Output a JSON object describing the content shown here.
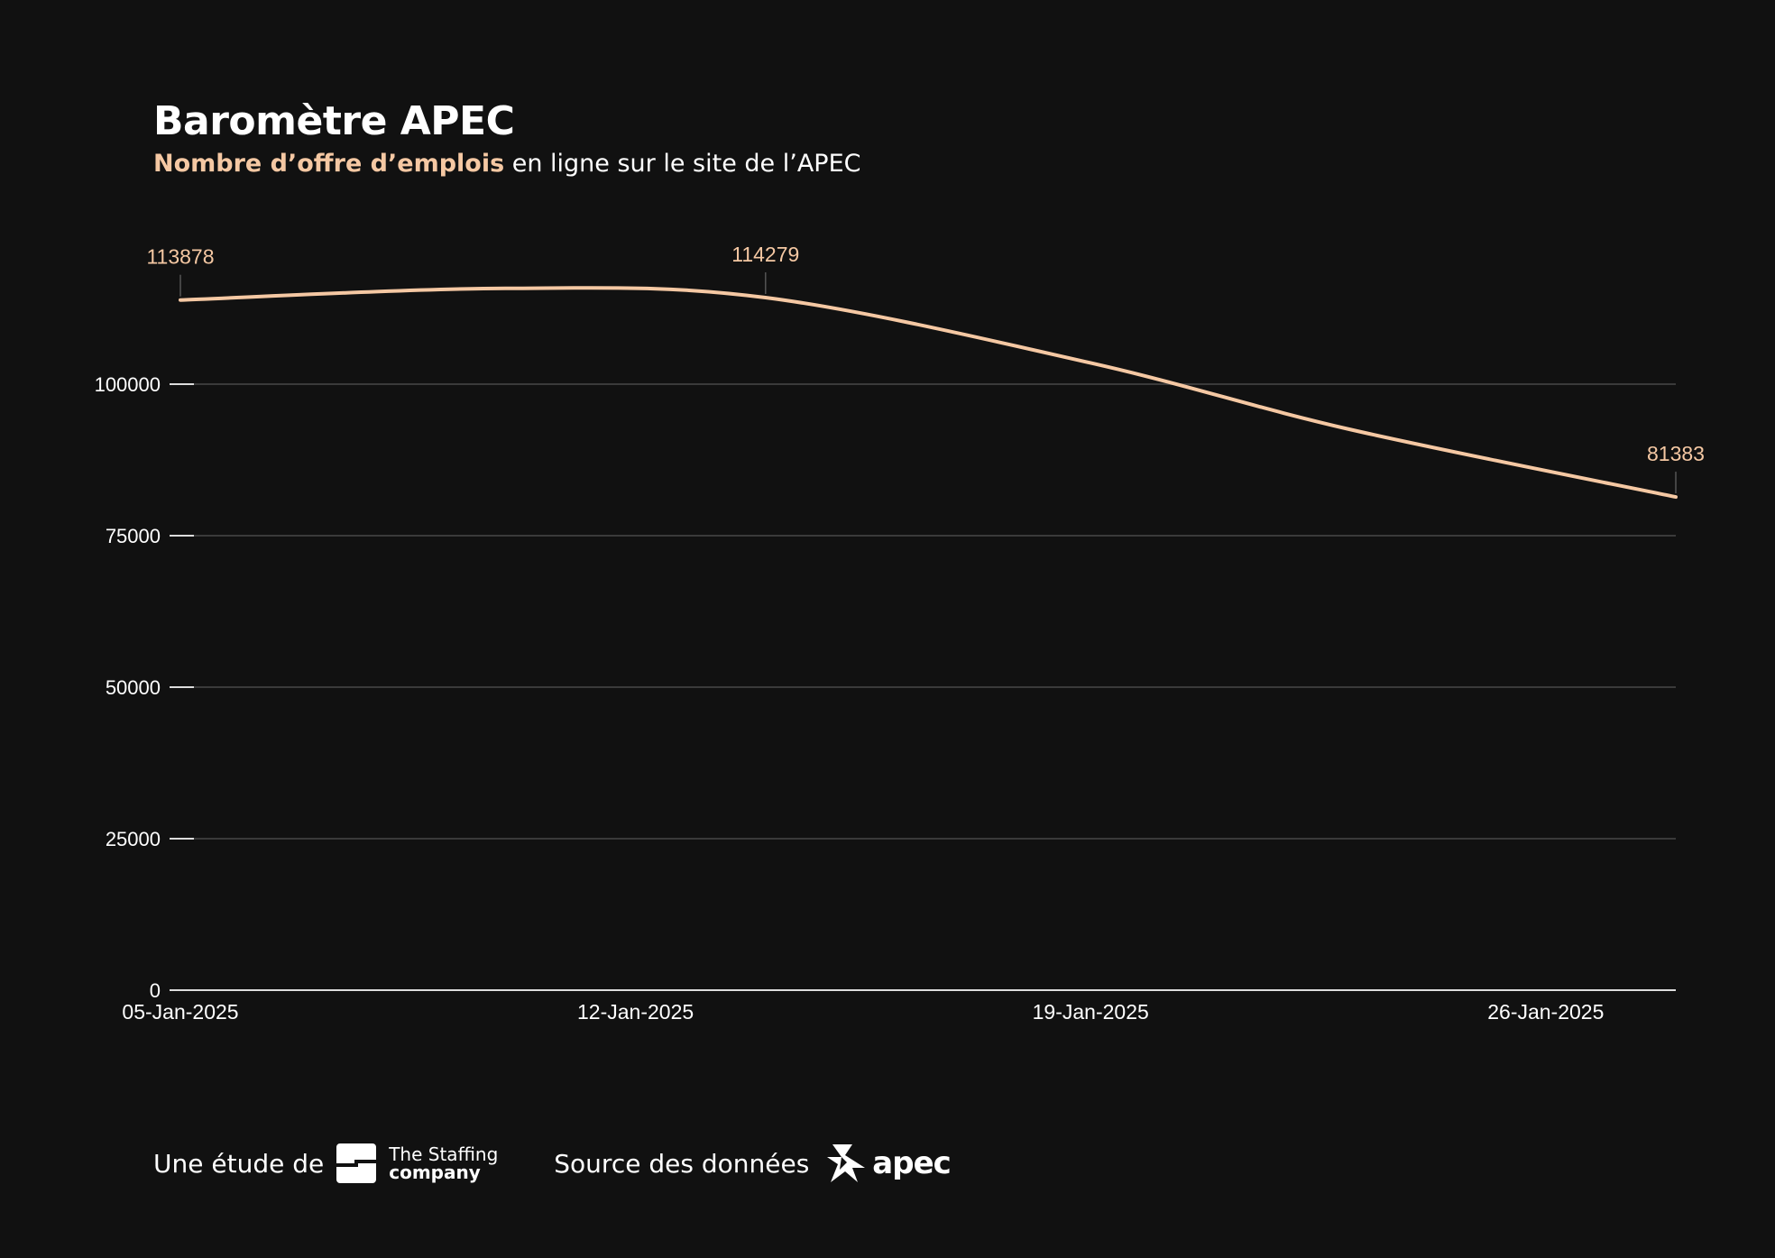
{
  "header": {
    "title": "Baromètre APEC",
    "subtitle_highlight": "Nombre d’offre d’emplois",
    "subtitle_rest": " en ligne sur le site de l’APEC"
  },
  "chart_data": {
    "type": "line",
    "title": "Baromètre APEC",
    "subtitle": "Nombre d’offre d’emplois en ligne sur le site de l’APEC",
    "xlabel": "",
    "ylabel": "",
    "x_ticks": [
      "05-Jan-2025",
      "12-Jan-2025",
      "19-Jan-2025",
      "26-Jan-2025"
    ],
    "y_ticks": [
      0,
      25000,
      50000,
      75000,
      100000
    ],
    "ylim": [
      0,
      114279
    ],
    "xlim": [
      "05-Jan-2025",
      "28-Jan-2025"
    ],
    "grid": true,
    "series": [
      {
        "color": "#F5C8A3",
        "points": [
          {
            "x": "05-Jan-2025",
            "y": 113878
          },
          {
            "x": "10-Jan-2025",
            "y": 115800
          },
          {
            "x": "14-Jan-2025",
            "y": 114279
          },
          {
            "x": "19-Jan-2025",
            "y": 103500
          },
          {
            "x": "23-Jan-2025",
            "y": 92500
          },
          {
            "x": "28-Jan-2025",
            "y": 81383
          }
        ]
      }
    ],
    "annotations": [
      {
        "x": "05-Jan-2025",
        "y": 113878,
        "label": "113878"
      },
      {
        "x": "14-Jan-2025",
        "y": 114279,
        "label": "114279"
      },
      {
        "x": "28-Jan-2025",
        "y": 81383,
        "label": "81383"
      }
    ]
  },
  "footer": {
    "study_label": "Une étude de",
    "staffing_line1": "The Staffing",
    "staffing_line2": "company",
    "source_label": "Source des données",
    "apec_word": "apec"
  },
  "colors": {
    "background": "#111111",
    "accent": "#F5C8A3",
    "grid": "#3a3a3a",
    "text": "#ffffff"
  }
}
